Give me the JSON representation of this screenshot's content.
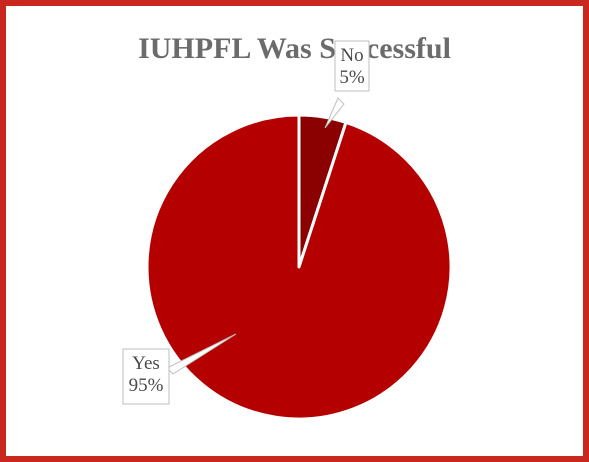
{
  "chart_data": {
    "type": "pie",
    "title": "IUHPFL Was Successful",
    "slices": [
      {
        "label": "No",
        "value": 5,
        "display": "5%",
        "color": "#8b0000"
      },
      {
        "label": "Yes",
        "value": 95,
        "display": "95%",
        "color": "#b50000"
      }
    ],
    "legend": "none",
    "data_labels": "callout"
  },
  "colors": {
    "border": "#c8281e",
    "slice_edge": "#ffffff",
    "title": "#6b6b6b"
  }
}
